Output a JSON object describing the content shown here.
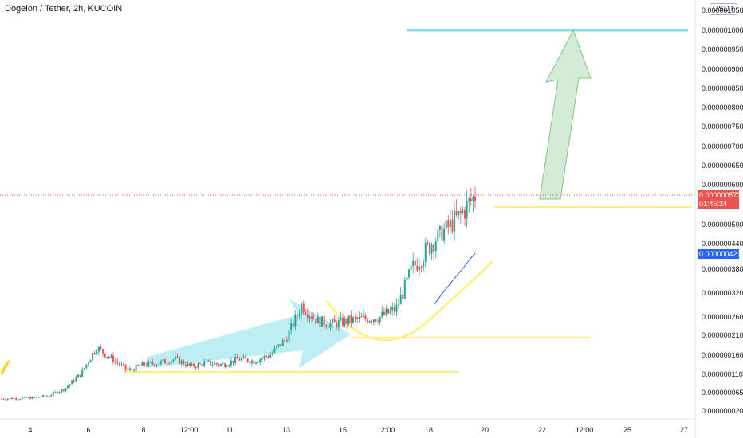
{
  "header": {
    "title": "Dogelon / Tether, 2h, KUCOIN",
    "unit_badge": "USDT"
  },
  "price_badges": {
    "last_price": "0.000000573",
    "countdown": "01:45:24",
    "ma_value": "0.000000421"
  },
  "colors": {
    "up": "#26a69a",
    "down": "#ef5350",
    "ma": "#2962ff",
    "annotation_yellow": "#fff176",
    "annotation_cyan": "#80deea",
    "annotation_green": "#a5d6a7"
  },
  "chart_data": {
    "type": "candlestick",
    "y_tick_labels": [
      "0.000001050",
      "0.000001000",
      "0.000000950",
      "0.000000900",
      "0.000000850",
      "0.000000800",
      "0.000000750",
      "0.000000700",
      "0.000000650",
      "0.000000600",
      "0.000000500",
      "0.000000440",
      "0.000000380",
      "0.000000320",
      "0.000000260",
      "0.000000210",
      "0.000000160",
      "0.000000110",
      "0.000000065",
      "0.000000020"
    ],
    "x_tick_labels": [
      "4",
      "6",
      "8",
      "12:00",
      "11",
      "13",
      "15",
      "12:00",
      "18",
      "20",
      "22",
      "12:00",
      "25",
      "27"
    ],
    "ylim": [
      2e-08,
      1.05e-06
    ],
    "series": [
      {
        "name": "close",
        "values": [
          5e-08,
          5.1e-08,
          5.2e-08,
          5.8e-08,
          7.5e-08,
          1.1e-07,
          1.8e-07,
          1.5e-07,
          1.2e-07,
          1.35e-07,
          1.4e-07,
          1.5e-07,
          1.3e-07,
          1.4e-07,
          1.35e-07,
          1.5e-07,
          1.45e-07,
          1.6e-07,
          2e-07,
          2.9e-07,
          2.5e-07,
          2.4e-07,
          2.5e-07,
          2.55e-07,
          2.6e-07,
          2.8e-07,
          3.8e-07,
          4.3e-07,
          4.8e-07,
          5.2e-07,
          5.73e-07
        ]
      }
    ]
  }
}
